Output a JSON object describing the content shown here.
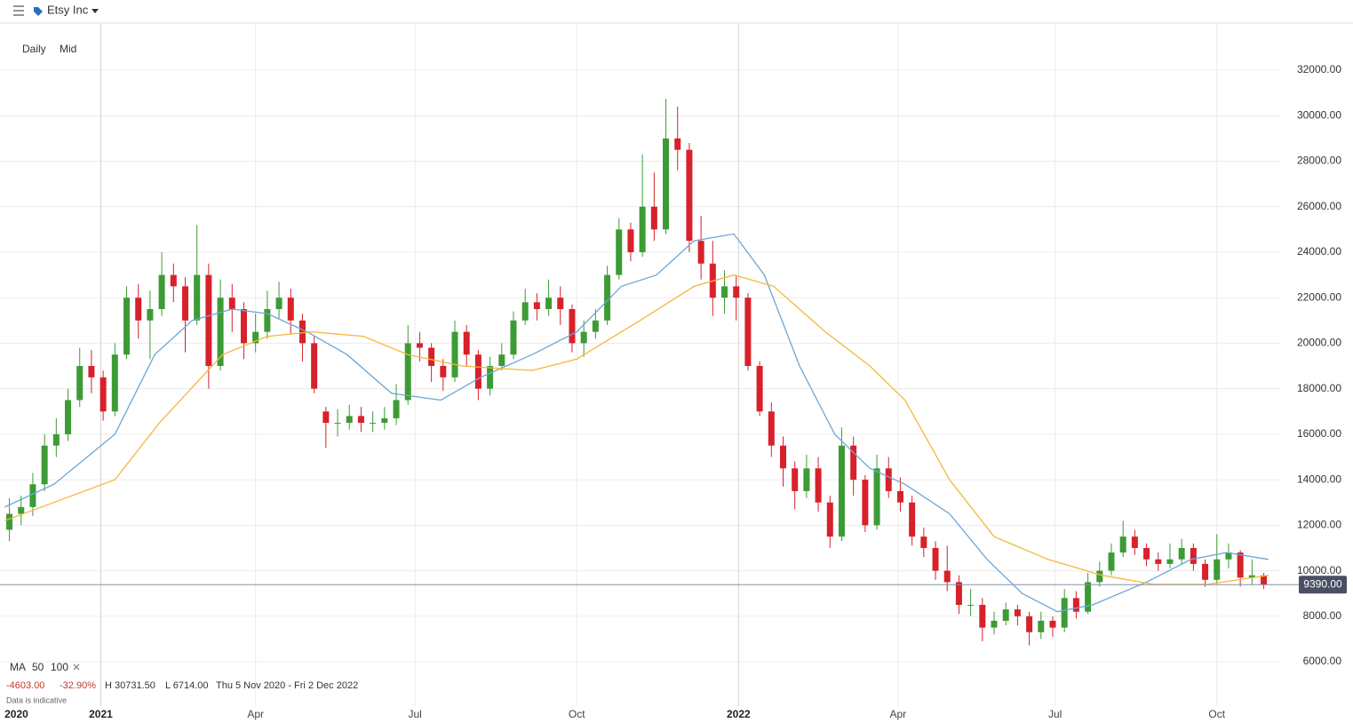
{
  "header": {
    "title": "Etsy Inc"
  },
  "controls": {
    "interval": "Daily",
    "price_type": "Mid"
  },
  "chart_data": {
    "type": "candlestick",
    "x": [
      2,
      7,
      12,
      17,
      22,
      27,
      32,
      37,
      42,
      47,
      52,
      57,
      62,
      67,
      72,
      77,
      82,
      87,
      92,
      97,
      102,
      107,
      112,
      117,
      122,
      127,
      132,
      137,
      142,
      147,
      152,
      157,
      162,
      167,
      172,
      177,
      182,
      187,
      192,
      197,
      202,
      207,
      212,
      217,
      222,
      227,
      232,
      237,
      242,
      247,
      252,
      257,
      262,
      267,
      272,
      277,
      282,
      287,
      292,
      297,
      302,
      307,
      312,
      317,
      322,
      327,
      332,
      337,
      342,
      347,
      352,
      357,
      362,
      367,
      372,
      377,
      382,
      387,
      392,
      397,
      402,
      407,
      412,
      417,
      422,
      427,
      432,
      437,
      442,
      447,
      452,
      457,
      462,
      467,
      472,
      477,
      482,
      487,
      492,
      497,
      502,
      507,
      512,
      517,
      522,
      527,
      532,
      537
    ],
    "open": [
      11800,
      12500,
      12800,
      13800,
      15500,
      16000,
      17500,
      19000,
      18500,
      17000,
      19500,
      22000,
      21000,
      21500,
      23000,
      22500,
      21000,
      23000,
      19000,
      22000,
      21500,
      20000,
      20500,
      21500,
      22000,
      21000,
      20000,
      17000,
      16500,
      16500,
      16800,
      16500,
      16500,
      16700,
      17500,
      20000,
      19800,
      19000,
      18500,
      20500,
      19500,
      18000,
      19000,
      19500,
      21000,
      21800,
      21500,
      22000,
      21500,
      20000,
      20500,
      21000,
      23000,
      25000,
      24000,
      26000,
      25000,
      29000,
      28500,
      24500,
      23500,
      22000,
      22500,
      22000,
      19000,
      17000,
      15500,
      14500,
      13500,
      14500,
      13000,
      11500,
      15500,
      14000,
      12000,
      14500,
      13500,
      13000,
      11500,
      11000,
      10000,
      9500,
      8500,
      8500,
      7500,
      7800,
      8300,
      8000,
      7300,
      7800,
      7500,
      8800,
      8200,
      9500,
      10000,
      10800,
      11500,
      11000,
      10500,
      10300,
      10500,
      11000,
      10300,
      9600,
      10500,
      10800,
      9700,
      9800
    ],
    "high": [
      13200,
      13300,
      14300,
      16000,
      16700,
      18000,
      19800,
      19700,
      18800,
      20000,
      22500,
      22600,
      22300,
      24000,
      23500,
      22900,
      25200,
      23500,
      22800,
      22600,
      21800,
      21300,
      22300,
      22700,
      22400,
      21300,
      20300,
      17200,
      17100,
      17300,
      17200,
      17000,
      17200,
      18200,
      20800,
      20500,
      20000,
      19300,
      21000,
      20800,
      19700,
      19400,
      20000,
      21400,
      22400,
      22200,
      22800,
      22500,
      21700,
      21000,
      21500,
      23400,
      25500,
      25300,
      28300,
      27500,
      30731.5,
      30400,
      28800,
      25600,
      24500,
      23200,
      23000,
      22200,
      19200,
      17400,
      15900,
      14800,
      15100,
      15000,
      13300,
      16300,
      15900,
      14200,
      15100,
      15000,
      14100,
      13300,
      11900,
      11300,
      11100,
      9800,
      9200,
      8800,
      8200,
      8600,
      8500,
      8200,
      8200,
      8000,
      9200,
      9100,
      9900,
      10400,
      11200,
      12200,
      11800,
      11200,
      10800,
      11200,
      11400,
      11200,
      10500,
      11600,
      11200,
      10900,
      10500,
      9900
    ],
    "low": [
      11300,
      12000,
      12400,
      13500,
      15000,
      15700,
      17200,
      17800,
      16600,
      16800,
      19300,
      20200,
      19300,
      21200,
      21800,
      19600,
      20800,
      18000,
      18800,
      20500,
      19300,
      19600,
      20200,
      21100,
      20400,
      19200,
      17800,
      15400,
      15900,
      16200,
      16100,
      16100,
      16200,
      16400,
      17300,
      19200,
      18300,
      17900,
      18300,
      19000,
      17500,
      17700,
      18800,
      19300,
      20800,
      21000,
      21200,
      20800,
      19600,
      19400,
      20200,
      20800,
      22800,
      23600,
      23800,
      24500,
      24800,
      27600,
      24000,
      22800,
      21200,
      21300,
      21000,
      18800,
      16800,
      15000,
      13700,
      12700,
      13200,
      12600,
      11000,
      11300,
      13300,
      11700,
      11800,
      13200,
      12600,
      11100,
      10600,
      9600,
      9100,
      8100,
      8000,
      6900,
      7200,
      7600,
      7600,
      6714,
      7000,
      7100,
      7300,
      7900,
      8100,
      9300,
      9800,
      10600,
      10700,
      10200,
      10000,
      10100,
      10300,
      10000,
      9300,
      9400,
      10100,
      9300,
      9400,
      9200
    ],
    "close": [
      12500,
      12800,
      13800,
      15500,
      16000,
      17500,
      19000,
      18500,
      17000,
      19500,
      22000,
      21000,
      21500,
      23000,
      22500,
      21000,
      23000,
      19000,
      22000,
      21500,
      20000,
      20500,
      21500,
      22000,
      21000,
      20000,
      18000,
      16500,
      16500,
      16800,
      16500,
      16500,
      16700,
      17500,
      20000,
      19800,
      19000,
      18500,
      20500,
      19500,
      18000,
      19000,
      19500,
      21000,
      21800,
      21500,
      22000,
      21500,
      20000,
      20500,
      21000,
      23000,
      25000,
      24000,
      26000,
      25000,
      29000,
      28500,
      24500,
      23500,
      22000,
      22500,
      22000,
      19000,
      17000,
      15500,
      14500,
      13500,
      14500,
      13000,
      11500,
      15500,
      14000,
      12000,
      14500,
      13500,
      13000,
      11500,
      11000,
      10000,
      9500,
      8500,
      8500,
      7500,
      7800,
      8300,
      8000,
      7300,
      7800,
      7500,
      8800,
      8200,
      9500,
      10000,
      10800,
      11500,
      11000,
      10500,
      10300,
      10500,
      11000,
      10300,
      9600,
      10500,
      10800,
      9700,
      9800,
      9390
    ],
    "up_color": "#3d9b35",
    "down_color": "#d7212b",
    "xlim": [
      -2,
      544
    ],
    "xticks": [
      {
        "value": 5,
        "label": "2020"
      },
      {
        "value": 41,
        "label": "2021"
      },
      {
        "value": 107,
        "label": "Apr"
      },
      {
        "value": 175,
        "label": "Jul"
      },
      {
        "value": 244,
        "label": "Oct"
      },
      {
        "value": 313,
        "label": "2022"
      },
      {
        "value": 381,
        "label": "Apr"
      },
      {
        "value": 448,
        "label": "Jul"
      },
      {
        "value": 517,
        "label": "Oct"
      }
    ],
    "ylim": [
      4050,
      34030
    ],
    "yticks": [
      {
        "value": 6000,
        "label": "6000.00"
      },
      {
        "value": 8000,
        "label": "8000.00"
      },
      {
        "value": 10000,
        "label": "10000.00"
      },
      {
        "value": 12000,
        "label": "12000.00"
      },
      {
        "value": 14000,
        "label": "14000.00"
      },
      {
        "value": 16000,
        "label": "16000.00"
      },
      {
        "value": 18000,
        "label": "18000.00"
      },
      {
        "value": 20000,
        "label": "20000.00"
      },
      {
        "value": 22000,
        "label": "22000.00"
      },
      {
        "value": 24000,
        "label": "24000.00"
      },
      {
        "value": 26000,
        "label": "26000.00"
      },
      {
        "value": 28000,
        "label": "28000.00"
      },
      {
        "value": 30000,
        "label": "30000.00"
      },
      {
        "value": 32000,
        "label": "32000.00"
      }
    ],
    "grid": true,
    "series": [
      {
        "name": "50",
        "color": "#6ba6d6",
        "x": [
          0,
          21,
          47,
          64,
          80,
          97,
          112,
          129,
          146,
          165,
          186,
          203,
          225,
          244,
          263,
          278,
          294,
          311,
          324,
          339,
          354,
          369,
          384,
          403,
          419,
          434,
          449,
          464,
          487,
          506,
          521,
          539
        ],
        "values": [
          12800,
          13800,
          16000,
          19500,
          21000,
          21500,
          21300,
          20500,
          19500,
          17800,
          17500,
          18500,
          19500,
          20500,
          22500,
          23000,
          24500,
          24800,
          23000,
          19000,
          16000,
          14500,
          13800,
          12500,
          10500,
          9000,
          8200,
          8500,
          9500,
          10500,
          10800,
          10500
        ]
      },
      {
        "name": "100",
        "color": "#f4b73c",
        "x": [
          0,
          21,
          47,
          66,
          93,
          112,
          131,
          153,
          172,
          195,
          225,
          244,
          271,
          294,
          311,
          328,
          350,
          369,
          384,
          403,
          422,
          445,
          468,
          490,
          513,
          539
        ],
        "values": [
          12200,
          13000,
          14000,
          16500,
          19500,
          20300,
          20500,
          20300,
          19500,
          19000,
          18800,
          19300,
          21000,
          22500,
          23000,
          22500,
          20500,
          19000,
          17500,
          14000,
          11500,
          10500,
          9800,
          9400,
          9400,
          9800
        ]
      }
    ],
    "price_line": {
      "value": 9390,
      "label": "9390.00"
    },
    "ma_label": "MA",
    "stats": {
      "change": "-4603.00",
      "change_pct": "-32.90%",
      "high": "H 30731.50",
      "low": "L 6714.00",
      "range": "Thu 5 Nov 2020 - Fri 2 Dec 2022"
    },
    "note": "Data is indicative"
  }
}
